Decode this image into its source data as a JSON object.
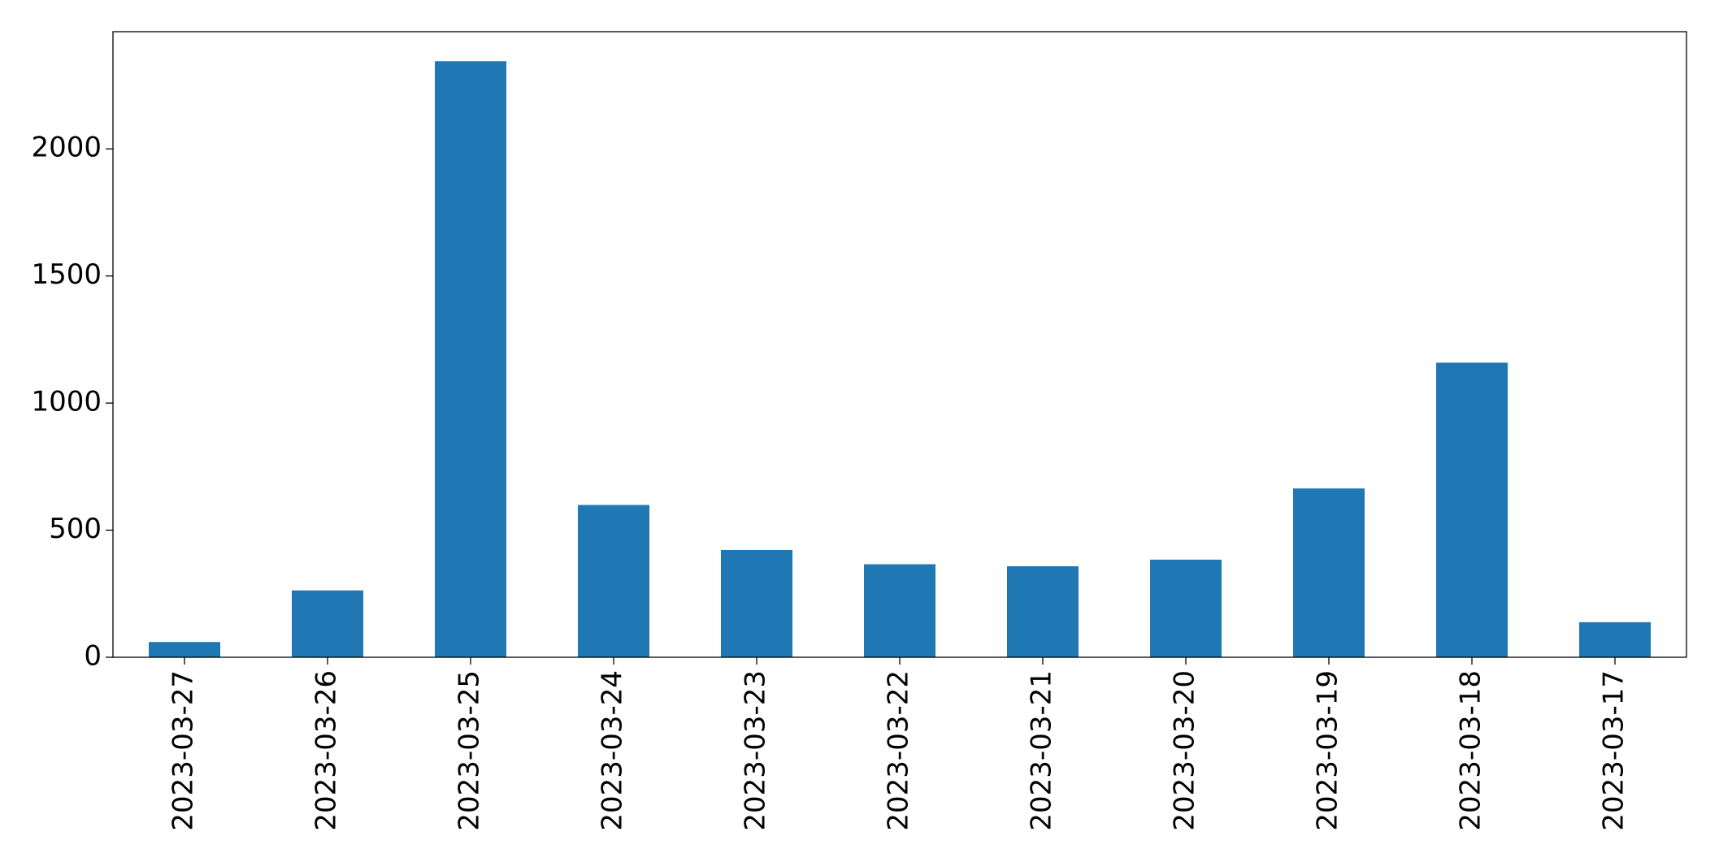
{
  "chart_data": {
    "type": "bar",
    "categories": [
      "2023-03-27",
      "2023-03-26",
      "2023-03-25",
      "2023-03-24",
      "2023-03-23",
      "2023-03-22",
      "2023-03-21",
      "2023-03-20",
      "2023-03-19",
      "2023-03-18",
      "2023-03-17"
    ],
    "values": [
      60,
      263,
      2345,
      599,
      422,
      366,
      358,
      384,
      664,
      1159,
      138
    ],
    "color": "#1f77b4",
    "ylim": [
      0,
      2461
    ],
    "yticks": [
      0,
      500,
      1000,
      1500,
      2000
    ],
    "grid": false
  }
}
